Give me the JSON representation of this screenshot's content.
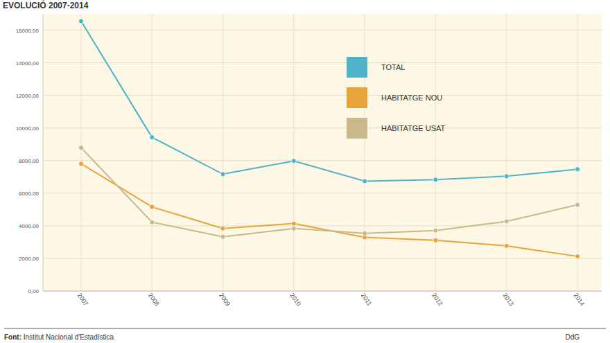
{
  "chart_data": {
    "type": "line",
    "title": "EVOLUCIÓ 2007-2014",
    "categories": [
      "2007",
      "2008",
      "2009",
      "2010",
      "2011",
      "2012",
      "2013",
      "2014"
    ],
    "series": [
      {
        "name": "TOTAL",
        "color": "#4fb3c8",
        "marker": "circle",
        "values": [
          16550,
          9430,
          7170,
          7980,
          6740,
          6830,
          7040,
          7470
        ]
      },
      {
        "name": "HABITATGE NOU",
        "color": "#e8a33a",
        "marker": "circle",
        "values": [
          7810,
          5160,
          3840,
          4140,
          3290,
          3110,
          2770,
          2130
        ]
      },
      {
        "name": "HABITATGE USAT",
        "color": "#c8b88a",
        "marker": "circle",
        "values": [
          8790,
          4220,
          3330,
          3840,
          3540,
          3710,
          4270,
          5290
        ]
      }
    ],
    "ylim": [
      0,
      17000
    ],
    "yticks": [
      {
        "value": 0,
        "label": "0,00"
      },
      {
        "value": 2000,
        "label": "2000,00"
      },
      {
        "value": 4000,
        "label": "4000,00"
      },
      {
        "value": 6000,
        "label": "6000,00"
      },
      {
        "value": 8000,
        "label": "8000,00"
      },
      {
        "value": 10000,
        "label": "10000,00"
      },
      {
        "value": 12000,
        "label": "12000,00"
      },
      {
        "value": 14000,
        "label": "14000,00"
      },
      {
        "value": 16000,
        "label": "16000,00"
      }
    ],
    "grid": true,
    "legend": "upper right",
    "source": "Font: Institut Nacional d'Estadística",
    "credit": "DdG"
  }
}
